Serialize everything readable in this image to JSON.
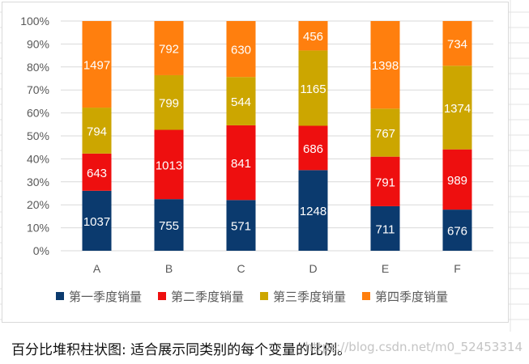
{
  "chart_data": {
    "type": "bar",
    "stacking": "percent",
    "categories": [
      "A",
      "B",
      "C",
      "D",
      "E",
      "F"
    ],
    "series": [
      {
        "name": "第一季度销量",
        "color": "#0B3A6E",
        "values": [
          1037,
          755,
          571,
          1248,
          711,
          676
        ]
      },
      {
        "name": "第二季度销量",
        "color": "#EE0F0F",
        "values": [
          643,
          1013,
          841,
          686,
          791,
          989
        ]
      },
      {
        "name": "第三季度销量",
        "color": "#CCA600",
        "values": [
          794,
          799,
          544,
          1165,
          767,
          1374
        ]
      },
      {
        "name": "第四季度销量",
        "color": "#FF7F0E",
        "values": [
          1497,
          792,
          630,
          456,
          1398,
          734
        ]
      }
    ],
    "ylim": [
      0,
      100
    ],
    "yticks": [
      "0%",
      "10%",
      "20%",
      "30%",
      "40%",
      "50%",
      "60%",
      "70%",
      "80%",
      "90%",
      "100%"
    ],
    "grid": true,
    "legend": "bottom"
  },
  "caption": "百分比堆积柱状图: 适合展示同类别的每个变量的比例。",
  "watermark": "https://blog.csdn.net/m0_52453314"
}
